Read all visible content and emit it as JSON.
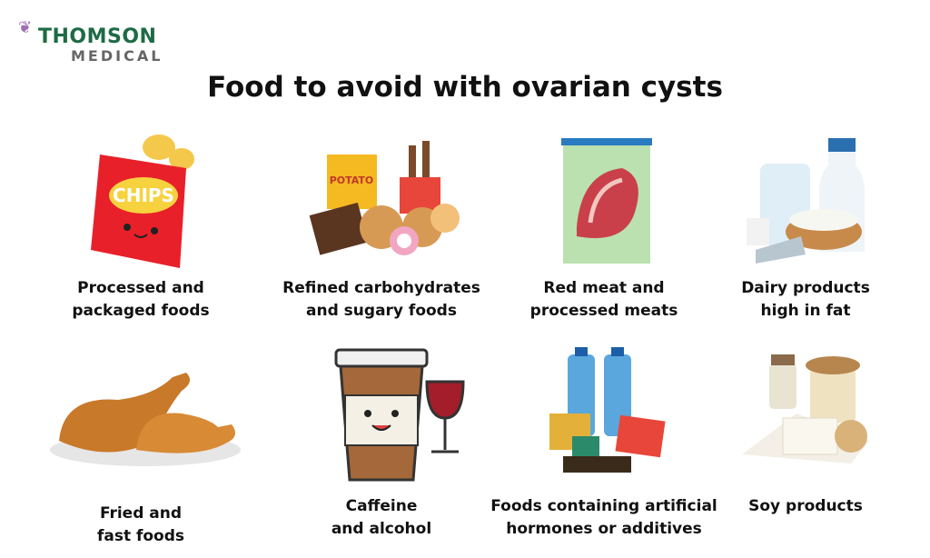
{
  "logo": {
    "line1": "THOMSON",
    "line2": "MEDICAL"
  },
  "title": "Food to avoid with ovarian cysts",
  "items": [
    {
      "label": "Processed and\npackaged foods",
      "icon": "chips-bag-icon"
    },
    {
      "label": "Refined carbohydrates\nand sugary foods",
      "icon": "sweets-icon"
    },
    {
      "label": "Red meat and\nprocessed meats",
      "icon": "meat-package-icon"
    },
    {
      "label": "Dairy products\nhigh in fat",
      "icon": "dairy-icon"
    },
    {
      "label": "Fried and\nfast foods",
      "icon": "fried-chicken-icon"
    },
    {
      "label": "Caffeine\nand alcohol",
      "icon": "coffee-wine-icon"
    },
    {
      "label": "Foods containing artificial\nhormones or additives",
      "icon": "bottled-canned-food-icon"
    },
    {
      "label": "Soy products",
      "icon": "soy-icon"
    }
  ],
  "chips_text": "CHIPS",
  "potato_text": "POTATO"
}
